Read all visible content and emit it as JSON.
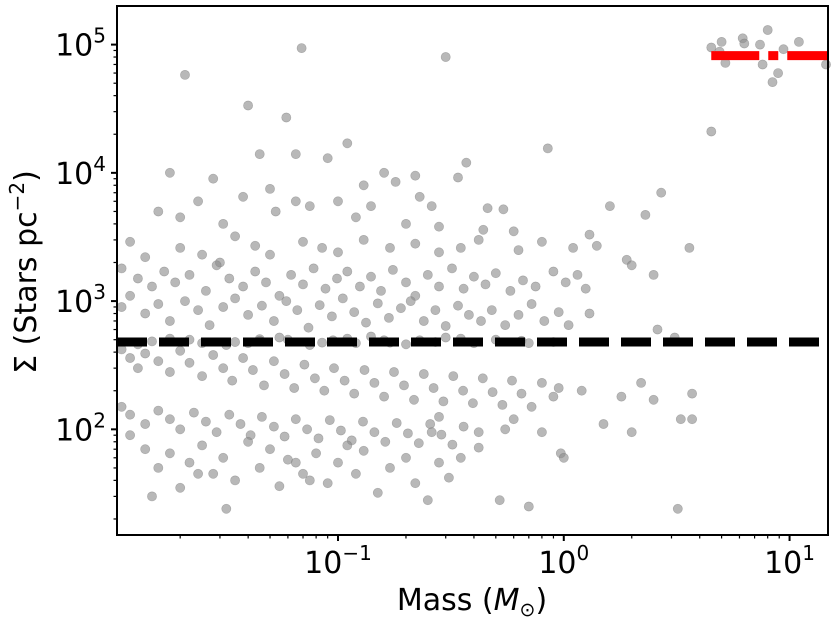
{
  "chart_data": {
    "type": "scatter",
    "xlabel": "Mass (M⊙)",
    "ylabel": "Σ (Stars pc⁻²)",
    "xscale": "log",
    "yscale": "log",
    "xlim": [
      0.0105,
      14.8
    ],
    "ylim": [
      15,
      200000
    ],
    "grid": false,
    "x_ticks": [
      {
        "value": 0.1,
        "base": "10",
        "exp": "−1"
      },
      {
        "value": 1,
        "base": "10",
        "exp": "0"
      },
      {
        "value": 10,
        "base": "10",
        "exp": "1"
      }
    ],
    "y_ticks": [
      {
        "value": 100,
        "base": "10",
        "exp": "2"
      },
      {
        "value": 1000,
        "base": "10",
        "exp": "3"
      },
      {
        "value": 10000,
        "base": "10",
        "exp": "4"
      },
      {
        "value": 100000,
        "base": "10",
        "exp": "5"
      }
    ],
    "marker_color": "#8c8c8c",
    "reference_lines": [
      {
        "style": "dashed",
        "color": "#000000",
        "y": 480,
        "x_range": [
          0.0105,
          14.8
        ]
      },
      {
        "style": "dashdot",
        "color": "#ff0000",
        "y": 82000,
        "x_range": [
          4.5,
          14.8
        ]
      }
    ],
    "points": [
      [
        0.035,
        480
      ],
      [
        0.06,
        500
      ],
      [
        0.12,
        470
      ],
      [
        0.2,
        460
      ],
      [
        0.5,
        500
      ],
      [
        0.9,
        480
      ],
      [
        0.3,
        520
      ],
      [
        0.045,
        505
      ],
      [
        0.075,
        455
      ],
      [
        0.16,
        495
      ],
      [
        0.025,
        470
      ],
      [
        0.018,
        510
      ],
      [
        0.013,
        460
      ],
      [
        0.27,
        480
      ],
      [
        0.4,
        470
      ],
      [
        0.65,
        490
      ],
      [
        0.14,
        530
      ],
      [
        0.085,
        475
      ],
      [
        0.055,
        520
      ],
      [
        0.032,
        455
      ],
      [
        0.022,
        500
      ],
      [
        0.015,
        485
      ],
      [
        0.11,
        510
      ],
      [
        0.23,
        495
      ],
      [
        0.35,
        510
      ],
      [
        0.7,
        470
      ],
      [
        0.045,
        490
      ],
      [
        0.17,
        475
      ],
      [
        0.095,
        495
      ],
      [
        0.04,
        470
      ],
      [
        0.3,
        80000
      ],
      [
        0.069,
        94000
      ],
      [
        0.021,
        58000
      ],
      [
        0.04,
        33500
      ],
      [
        0.059,
        27000
      ],
      [
        0.065,
        14000
      ],
      [
        0.045,
        14000
      ],
      [
        0.11,
        17000
      ],
      [
        0.09,
        13000
      ],
      [
        0.37,
        12000
      ],
      [
        0.34,
        9200
      ],
      [
        0.18,
        8500
      ],
      [
        0.13,
        8000
      ],
      [
        0.16,
        10000
      ],
      [
        0.028,
        9000
      ],
      [
        0.018,
        10000
      ],
      [
        0.05,
        7500
      ],
      [
        0.22,
        9500
      ],
      [
        0.85,
        15500
      ],
      [
        0.065,
        6000
      ],
      [
        0.1,
        6000
      ],
      [
        0.024,
        6000
      ],
      [
        0.031,
        4000
      ],
      [
        0.02,
        4500
      ],
      [
        0.016,
        5000
      ],
      [
        0.038,
        6500
      ],
      [
        0.053,
        5000
      ],
      [
        0.075,
        5500
      ],
      [
        0.12,
        4500
      ],
      [
        0.14,
        5500
      ],
      [
        0.2,
        4000
      ],
      [
        0.26,
        5500
      ],
      [
        0.46,
        5300
      ],
      [
        0.54,
        5200
      ],
      [
        0.6,
        3500
      ],
      [
        1.6,
        5500
      ],
      [
        2.3,
        4700
      ],
      [
        2.7,
        7000
      ],
      [
        0.23,
        6500
      ],
      [
        0.28,
        3800
      ],
      [
        0.44,
        3600
      ],
      [
        0.012,
        2900
      ],
      [
        0.014,
        2200
      ],
      [
        0.02,
        2600
      ],
      [
        0.025,
        2300
      ],
      [
        0.03,
        2000
      ],
      [
        0.035,
        3200
      ],
      [
        0.043,
        2700
      ],
      [
        0.05,
        2300
      ],
      [
        0.07,
        2900
      ],
      [
        0.085,
        2600
      ],
      [
        0.1,
        2400
      ],
      [
        0.13,
        3000
      ],
      [
        0.17,
        2600
      ],
      [
        0.22,
        2800
      ],
      [
        0.28,
        2400
      ],
      [
        0.35,
        2600
      ],
      [
        0.42,
        3000
      ],
      [
        0.63,
        2500
      ],
      [
        0.8,
        2900
      ],
      [
        1.1,
        2600
      ],
      [
        1.3,
        3300
      ],
      [
        1.4,
        2700
      ],
      [
        1.9,
        2100
      ],
      [
        3.6,
        2600
      ],
      [
        0.011,
        1800
      ],
      [
        0.013,
        1500
      ],
      [
        0.015,
        1300
      ],
      [
        0.017,
        1700
      ],
      [
        0.019,
        1400
      ],
      [
        0.022,
        1600
      ],
      [
        0.026,
        1200
      ],
      [
        0.029,
        1900
      ],
      [
        0.033,
        1500
      ],
      [
        0.038,
        1300
      ],
      [
        0.043,
        1700
      ],
      [
        0.048,
        1400
      ],
      [
        0.055,
        1100
      ],
      [
        0.062,
        1600
      ],
      [
        0.07,
        1350
      ],
      [
        0.078,
        1800
      ],
      [
        0.088,
        1250
      ],
      [
        0.099,
        1500
      ],
      [
        0.11,
        1700
      ],
      [
        0.125,
        1300
      ],
      [
        0.14,
        1550
      ],
      [
        0.155,
        1200
      ],
      [
        0.175,
        1750
      ],
      [
        0.2,
        1400
      ],
      [
        0.22,
        1100
      ],
      [
        0.25,
        1600
      ],
      [
        0.28,
        1300
      ],
      [
        0.32,
        1800
      ],
      [
        0.36,
        1250
      ],
      [
        0.4,
        1550
      ],
      [
        0.45,
        1350
      ],
      [
        0.5,
        1650
      ],
      [
        0.58,
        1200
      ],
      [
        0.66,
        1450
      ],
      [
        0.75,
        1300
      ],
      [
        0.9,
        1700
      ],
      [
        1.02,
        1400
      ],
      [
        1.15,
        1600
      ],
      [
        1.25,
        1250
      ],
      [
        2.0,
        1900
      ],
      [
        2.5,
        1600
      ],
      [
        0.011,
        900
      ],
      [
        0.012,
        1100
      ],
      [
        0.014,
        800
      ],
      [
        0.016,
        950
      ],
      [
        0.018,
        700
      ],
      [
        0.021,
        1000
      ],
      [
        0.024,
        850
      ],
      [
        0.027,
        650
      ],
      [
        0.031,
        900
      ],
      [
        0.035,
        1050
      ],
      [
        0.04,
        780
      ],
      [
        0.046,
        920
      ],
      [
        0.052,
        700
      ],
      [
        0.059,
        1000
      ],
      [
        0.066,
        850
      ],
      [
        0.074,
        620
      ],
      [
        0.083,
        930
      ],
      [
        0.094,
        760
      ],
      [
        0.105,
        1050
      ],
      [
        0.118,
        820
      ],
      [
        0.133,
        680
      ],
      [
        0.15,
        960
      ],
      [
        0.168,
        740
      ],
      [
        0.19,
        880
      ],
      [
        0.21,
        1000
      ],
      [
        0.24,
        700
      ],
      [
        0.27,
        850
      ],
      [
        0.3,
        640
      ],
      [
        0.34,
        920
      ],
      [
        0.38,
        780
      ],
      [
        0.43,
        700
      ],
      [
        0.48,
        850
      ],
      [
        0.55,
        650
      ],
      [
        0.63,
        780
      ],
      [
        0.72,
        950
      ],
      [
        0.82,
        700
      ],
      [
        1.05,
        650
      ],
      [
        2.6,
        600
      ],
      [
        3.1,
        520
      ],
      [
        1.3,
        800
      ],
      [
        0.95,
        820
      ],
      [
        0.011,
        420
      ],
      [
        0.012,
        360
      ],
      [
        0.013,
        300
      ],
      [
        0.014,
        390
      ],
      [
        0.016,
        340
      ],
      [
        0.018,
        280
      ],
      [
        0.02,
        410
      ],
      [
        0.022,
        330
      ],
      [
        0.025,
        260
      ],
      [
        0.028,
        380
      ],
      [
        0.031,
        300
      ],
      [
        0.034,
        240
      ],
      [
        0.038,
        360
      ],
      [
        0.042,
        290
      ],
      [
        0.047,
        220
      ],
      [
        0.052,
        340
      ],
      [
        0.058,
        270
      ],
      [
        0.064,
        210
      ],
      [
        0.071,
        320
      ],
      [
        0.079,
        250
      ],
      [
        0.087,
        200
      ],
      [
        0.096,
        300
      ],
      [
        0.107,
        240
      ],
      [
        0.118,
        190
      ],
      [
        0.131,
        290
      ],
      [
        0.145,
        230
      ],
      [
        0.16,
        180
      ],
      [
        0.177,
        280
      ],
      [
        0.196,
        220
      ],
      [
        0.217,
        170
      ],
      [
        0.24,
        270
      ],
      [
        0.265,
        210
      ],
      [
        0.293,
        165
      ],
      [
        0.324,
        260
      ],
      [
        0.358,
        200
      ],
      [
        0.396,
        160
      ],
      [
        0.438,
        250
      ],
      [
        0.484,
        195
      ],
      [
        0.535,
        155
      ],
      [
        0.59,
        240
      ],
      [
        0.65,
        190
      ],
      [
        0.72,
        150
      ],
      [
        0.8,
        230
      ],
      [
        0.9,
        180
      ],
      [
        0.95,
        210
      ],
      [
        1.2,
        200
      ],
      [
        1.8,
        180
      ],
      [
        2.2,
        230
      ],
      [
        2.5,
        170
      ],
      [
        3.7,
        190
      ],
      [
        0.011,
        150
      ],
      [
        0.012,
        130
      ],
      [
        0.014,
        110
      ],
      [
        0.016,
        140
      ],
      [
        0.018,
        120
      ],
      [
        0.02,
        100
      ],
      [
        0.023,
        135
      ],
      [
        0.026,
        115
      ],
      [
        0.029,
        95
      ],
      [
        0.033,
        130
      ],
      [
        0.037,
        110
      ],
      [
        0.041,
        90
      ],
      [
        0.046,
        125
      ],
      [
        0.052,
        105
      ],
      [
        0.058,
        88
      ],
      [
        0.065,
        120
      ],
      [
        0.073,
        100
      ],
      [
        0.082,
        85
      ],
      [
        0.092,
        118
      ],
      [
        0.103,
        98
      ],
      [
        0.115,
        82
      ],
      [
        0.129,
        115
      ],
      [
        0.145,
        95
      ],
      [
        0.162,
        80
      ],
      [
        0.182,
        112
      ],
      [
        0.204,
        93
      ],
      [
        0.228,
        78
      ],
      [
        0.256,
        110
      ],
      [
        0.287,
        91
      ],
      [
        0.321,
        76
      ],
      [
        0.36,
        105
      ],
      [
        0.42,
        95
      ],
      [
        0.55,
        100
      ],
      [
        0.8,
        95
      ],
      [
        1.5,
        110
      ],
      [
        2.0,
        95
      ],
      [
        3.3,
        120
      ],
      [
        3.7,
        120
      ],
      [
        0.6,
        120
      ],
      [
        0.28,
        125
      ],
      [
        0.012,
        90
      ],
      [
        0.014,
        70
      ],
      [
        0.016,
        50
      ],
      [
        0.018,
        65
      ],
      [
        0.02,
        35
      ],
      [
        0.022,
        55
      ],
      [
        0.025,
        75
      ],
      [
        0.028,
        45
      ],
      [
        0.031,
        60
      ],
      [
        0.035,
        40
      ],
      [
        0.04,
        80
      ],
      [
        0.045,
        50
      ],
      [
        0.05,
        70
      ],
      [
        0.055,
        36
      ],
      [
        0.06,
        58
      ],
      [
        0.07,
        45
      ],
      [
        0.08,
        65
      ],
      [
        0.09,
        38
      ],
      [
        0.1,
        55
      ],
      [
        0.12,
        45
      ],
      [
        0.13,
        68
      ],
      [
        0.15,
        32
      ],
      [
        0.17,
        50
      ],
      [
        0.2,
        60
      ],
      [
        0.22,
        38
      ],
      [
        0.25,
        28
      ],
      [
        0.28,
        55
      ],
      [
        0.31,
        42
      ],
      [
        0.35,
        60
      ],
      [
        0.52,
        28
      ],
      [
        0.7,
        25
      ],
      [
        0.97,
        65
      ],
      [
        1.0,
        60
      ],
      [
        3.2,
        24
      ],
      [
        0.032,
        24
      ],
      [
        0.024,
        45
      ],
      [
        0.015,
        30
      ],
      [
        0.065,
        55
      ],
      [
        0.075,
        40
      ],
      [
        0.11,
        75
      ],
      [
        0.26,
        95
      ],
      [
        0.42,
        72
      ],
      [
        4.5,
        21000
      ],
      [
        4.5,
        95000
      ],
      [
        4.9,
        88000
      ],
      [
        5.0,
        105000
      ],
      [
        6.2,
        112000
      ],
      [
        6.3,
        102000
      ],
      [
        7.4,
        100000
      ],
      [
        7.6,
        70000
      ],
      [
        8.0,
        130000
      ],
      [
        8.4,
        51000
      ],
      [
        8.9,
        60000
      ],
      [
        9.4,
        92000
      ],
      [
        11.0,
        105000
      ],
      [
        14.5,
        70000
      ],
      [
        5.2,
        72000
      ]
    ]
  }
}
